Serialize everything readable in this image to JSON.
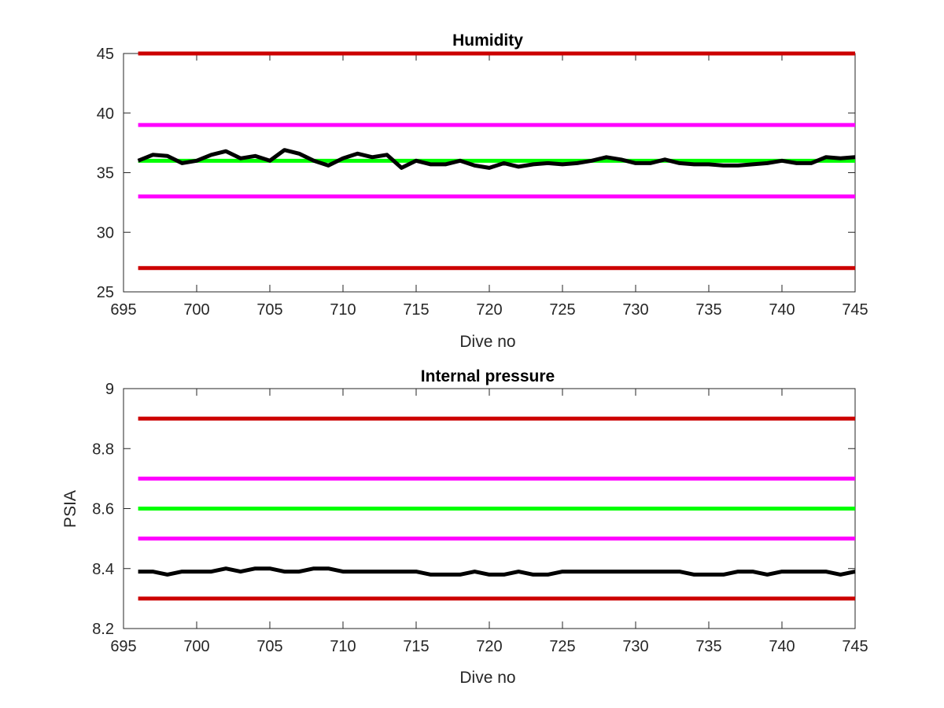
{
  "chart_data": [
    {
      "type": "line",
      "title": "Humidity",
      "xlabel": "Dive no",
      "ylabel": "",
      "xlim": [
        695,
        745
      ],
      "ylim": [
        25,
        45
      ],
      "xticks": [
        "695",
        "700",
        "705",
        "710",
        "715",
        "720",
        "725",
        "730",
        "735",
        "740",
        "745"
      ],
      "yticks": [
        "25",
        "30",
        "35",
        "40",
        "45"
      ],
      "grid": false,
      "colors": {
        "red": "#cc0000",
        "magenta": "#ff00ff",
        "green": "#00ff00",
        "black": "#000000"
      },
      "reference_lines": [
        {
          "y": 45,
          "color": "#cc0000"
        },
        {
          "y": 39,
          "color": "#ff00ff"
        },
        {
          "y": 36,
          "color": "#00ff00"
        },
        {
          "y": 33,
          "color": "#ff00ff"
        },
        {
          "y": 27,
          "color": "#cc0000"
        }
      ],
      "series": [
        {
          "color": "#000000",
          "x": [
            696,
            697,
            698,
            699,
            700,
            701,
            702,
            703,
            704,
            705,
            706,
            707,
            708,
            709,
            710,
            711,
            712,
            713,
            714,
            715,
            716,
            717,
            718,
            719,
            720,
            721,
            722,
            723,
            724,
            725,
            726,
            727,
            728,
            729,
            730,
            731,
            732,
            733,
            734,
            735,
            736,
            737,
            738,
            739,
            740,
            741,
            742,
            743,
            744,
            745
          ],
          "y": [
            36.0,
            36.5,
            36.4,
            35.8,
            36.0,
            36.5,
            36.8,
            36.2,
            36.4,
            36.0,
            36.9,
            36.6,
            36.0,
            35.6,
            36.2,
            36.6,
            36.3,
            36.5,
            35.4,
            36.0,
            35.7,
            35.7,
            36.0,
            35.6,
            35.4,
            35.8,
            35.5,
            35.7,
            35.8,
            35.7,
            35.8,
            36.0,
            36.3,
            36.1,
            35.8,
            35.8,
            36.1,
            35.8,
            35.7,
            35.7,
            35.6,
            35.6,
            35.7,
            35.8,
            36.0,
            35.8,
            35.8,
            36.3,
            36.2,
            36.3
          ]
        }
      ]
    },
    {
      "type": "line",
      "title": "Internal pressure",
      "xlabel": "Dive no",
      "ylabel": "PSIA",
      "xlim": [
        695,
        745
      ],
      "ylim": [
        8.2,
        9.0
      ],
      "xticks": [
        "695",
        "700",
        "705",
        "710",
        "715",
        "720",
        "725",
        "730",
        "735",
        "740",
        "745"
      ],
      "yticks": [
        "8.2",
        "8.4",
        "8.6",
        "8.8",
        "9"
      ],
      "grid": false,
      "colors": {
        "red": "#cc0000",
        "magenta": "#ff00ff",
        "green": "#00ff00",
        "black": "#000000"
      },
      "reference_lines": [
        {
          "y": 8.9,
          "color": "#cc0000"
        },
        {
          "y": 8.7,
          "color": "#ff00ff"
        },
        {
          "y": 8.6,
          "color": "#00ff00"
        },
        {
          "y": 8.5,
          "color": "#ff00ff"
        },
        {
          "y": 8.3,
          "color": "#cc0000"
        }
      ],
      "series": [
        {
          "color": "#000000",
          "x": [
            696,
            697,
            698,
            699,
            700,
            701,
            702,
            703,
            704,
            705,
            706,
            707,
            708,
            709,
            710,
            711,
            712,
            713,
            714,
            715,
            716,
            717,
            718,
            719,
            720,
            721,
            722,
            723,
            724,
            725,
            726,
            727,
            728,
            729,
            730,
            731,
            732,
            733,
            734,
            735,
            736,
            737,
            738,
            739,
            740,
            741,
            742,
            743,
            744,
            745
          ],
          "y": [
            8.39,
            8.39,
            8.38,
            8.39,
            8.39,
            8.39,
            8.4,
            8.39,
            8.4,
            8.4,
            8.39,
            8.39,
            8.4,
            8.4,
            8.39,
            8.39,
            8.39,
            8.39,
            8.39,
            8.39,
            8.38,
            8.38,
            8.38,
            8.39,
            8.38,
            8.38,
            8.39,
            8.38,
            8.38,
            8.39,
            8.39,
            8.39,
            8.39,
            8.39,
            8.39,
            8.39,
            8.39,
            8.39,
            8.38,
            8.38,
            8.38,
            8.39,
            8.39,
            8.38,
            8.39,
            8.39,
            8.39,
            8.39,
            8.38,
            8.39
          ]
        }
      ]
    }
  ]
}
